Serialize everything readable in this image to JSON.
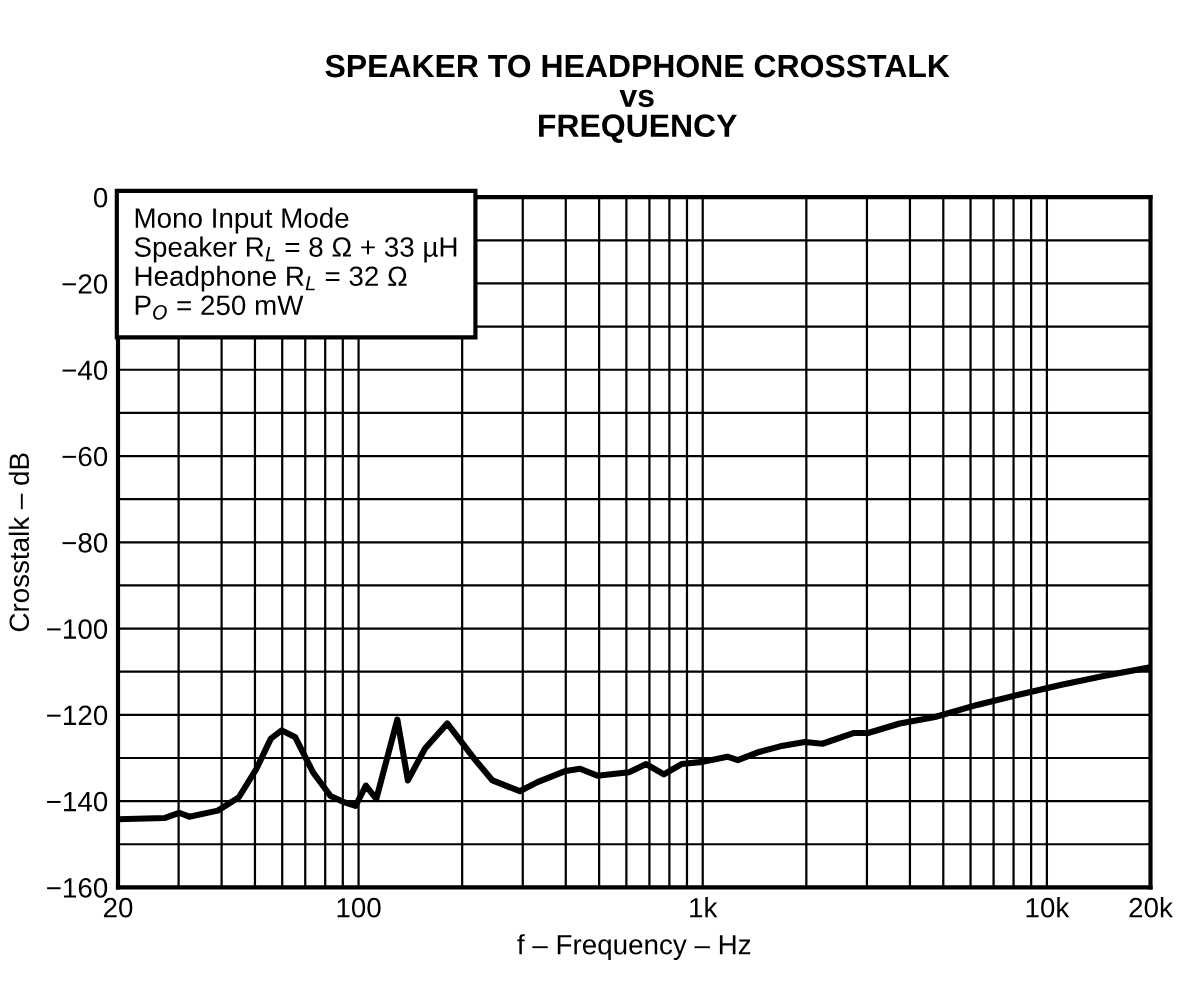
{
  "chart_data": {
    "type": "line",
    "title": "SPEAKER TO HEADPHONE CROSSTALK\nvs\nFREQUENCY",
    "xlabel": "f – Frequency – Hz",
    "ylabel": "Crosstalk – dB",
    "log": "x",
    "grid": true,
    "marker": "none",
    "line_style": "solid",
    "legend": false,
    "annotations": [
      "Mono Input Mode",
      "Speaker R$_{L}$ = 8 Ω + 33 µH",
      "Headphone R$_{L}$ = 32 Ω",
      "P$_{O}$ = 250 mW"
    ],
    "xlim": [
      20,
      20000
    ],
    "ylim": [
      -160,
      0
    ],
    "xticks": [
      20,
      {
        "value": 30,
        "label": null
      },
      {
        "value": 40,
        "label": null
      },
      {
        "value": 50,
        "label": null
      },
      {
        "value": 60,
        "label": null
      },
      {
        "value": 70,
        "label": null
      },
      {
        "value": 80,
        "label": null
      },
      {
        "value": 90,
        "label": null
      },
      100,
      {
        "value": 200,
        "label": null
      },
      {
        "value": 300,
        "label": null
      },
      {
        "value": 400,
        "label": null
      },
      {
        "value": 500,
        "label": null
      },
      {
        "value": 600,
        "label": null
      },
      {
        "value": 700,
        "label": null
      },
      {
        "value": 800,
        "label": null
      },
      {
        "value": 900,
        "label": null
      },
      {
        "value": 1000,
        "label": "1k"
      },
      {
        "value": 2000,
        "label": null
      },
      {
        "value": 3000,
        "label": null
      },
      {
        "value": 4000,
        "label": null
      },
      {
        "value": 5000,
        "label": null
      },
      {
        "value": 6000,
        "label": null
      },
      {
        "value": 7000,
        "label": null
      },
      {
        "value": 8000,
        "label": null
      },
      {
        "value": 9000,
        "label": null
      },
      {
        "value": 10000,
        "label": "10k"
      },
      {
        "value": 20000,
        "label": "20k"
      }
    ],
    "yticks": [
      -160,
      {
        "value": -150,
        "label": null
      },
      -140,
      {
        "value": -130,
        "label": null
      },
      -120,
      {
        "value": -110,
        "label": null
      },
      -100,
      {
        "value": -90,
        "label": null
      },
      -80,
      {
        "value": -70,
        "label": null
      },
      -60,
      {
        "value": -50,
        "label": null
      },
      -40,
      {
        "value": -30,
        "label": null
      },
      -20,
      {
        "value": -10,
        "label": null
      },
      0
    ],
    "series": [
      {
        "color": "#000000",
        "x": [
          20,
          27.4,
          30.1,
          32.2,
          39,
          44.9,
          50.5,
          55.6,
          59.8,
          65.5,
          73.7,
          82.9,
          91.1,
          98,
          105,
          112.6,
          129.6,
          139.1,
          156,
          181,
          217,
          245,
          294,
          331,
          400,
          440,
          494,
          611,
          685,
          771,
          868,
          1000,
          1179,
          1265,
          1458,
          1679,
          1980,
          2228,
          2752,
          3022,
          3736,
          4730,
          6270,
          8330,
          11030,
          14610,
          19880
        ],
        "values": [
          -144.2,
          -143.9,
          -142.7,
          -143.6,
          -142.2,
          -139.1,
          -132.5,
          -125.5,
          -123.6,
          -125.2,
          -133.3,
          -138.8,
          -140.3,
          -141.1,
          -136.4,
          -139.5,
          -121.1,
          -135.2,
          -127.8,
          -122,
          -130.2,
          -135.2,
          -137.7,
          -135.6,
          -133,
          -132.5,
          -134.1,
          -133.3,
          -131.4,
          -133.8,
          -131.4,
          -130.9,
          -129.7,
          -130.5,
          -128.6,
          -127.3,
          -126.3,
          -126.7,
          -124.2,
          -124.2,
          -122,
          -120.5,
          -117.7,
          -115.3,
          -113,
          -111,
          -109
        ]
      }
    ]
  }
}
